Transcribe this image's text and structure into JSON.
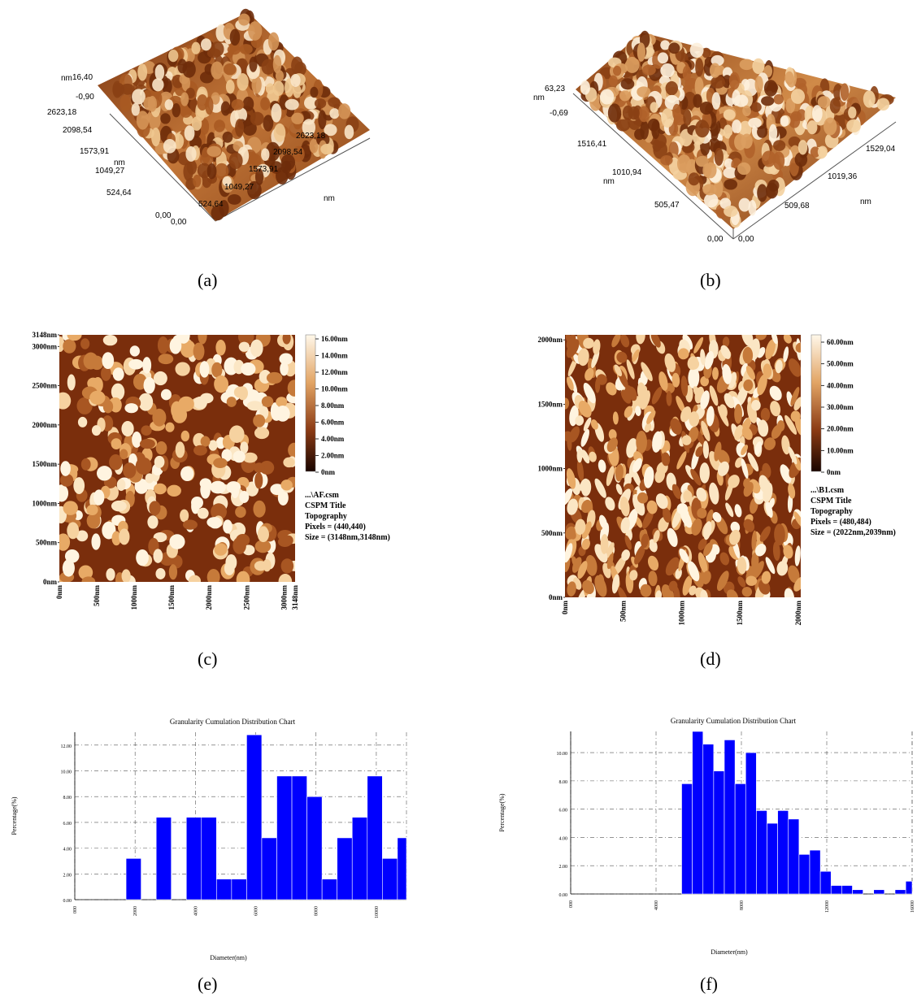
{
  "panels": {
    "a": {
      "caption": "(a)",
      "z_unit": "nm",
      "z_max": "16,40",
      "z_min": "-0,90",
      "left_axis_unit": "nm",
      "left_axis_ticks": [
        "0,00",
        "524,64",
        "1049,27",
        "1573,91",
        "2098,54",
        "2623,18"
      ],
      "right_axis_unit": "nm",
      "right_axis_ticks": [
        "0,00",
        "524,64",
        "1049,27",
        "1573,91",
        "2098,54",
        "2623,18"
      ]
    },
    "b": {
      "caption": "(b)",
      "z_unit": "nm",
      "z_max": "63,23",
      "z_min": "-0,69",
      "left_axis_unit": "nm",
      "left_axis_ticks": [
        "0,00",
        "505,47",
        "1010,94",
        "1516,41"
      ],
      "right_axis_unit": "nm",
      "right_axis_ticks": [
        "0,00",
        "509,68",
        "1019,36",
        "1529,04"
      ]
    },
    "c": {
      "caption": "(c)",
      "y_ticks": [
        "0nm",
        "500nm",
        "1000nm",
        "1500nm",
        "2000nm",
        "2500nm",
        "3000nm",
        "3148nm"
      ],
      "x_ticks": [
        "0nm",
        "500nm",
        "1000nm",
        "1500nm",
        "2000nm",
        "2500nm",
        "3000nm",
        "3148nm"
      ],
      "colorbar_ticks": [
        "16.00nm",
        "14.00nm",
        "12.00nm",
        "10.00nm",
        "8.00nm",
        "6.00nm",
        "4.00nm",
        "2.00nm",
        "0nm"
      ],
      "info": [
        "...\\AF.csm",
        "CSPM Title",
        "Topography",
        "Pixels = (440,440)",
        "Size = (3148nm,3148nm)"
      ]
    },
    "d": {
      "caption": "(d)",
      "y_ticks": [
        "0nm",
        "500nm",
        "1000nm",
        "1500nm",
        "2000nm"
      ],
      "x_ticks": [
        "0nm",
        "500nm",
        "1000nm",
        "1500nm",
        "2000nm"
      ],
      "colorbar_ticks": [
        "60.00nm",
        "50.00nm",
        "40.00nm",
        "30.00nm",
        "20.00nm",
        "10.00nm",
        "0nm"
      ],
      "info": [
        "...\\B1.csm",
        "CSPM Title",
        "Topography",
        "Pixels = (480,484)",
        "Size = (2022nm,2039nm)"
      ]
    },
    "e": {
      "caption": "(e)"
    },
    "f": {
      "caption": "(f)"
    }
  },
  "chart_data": [
    {
      "panel": "e",
      "type": "bar",
      "title": "Granularity Cumulation Distribution   Chart",
      "xlabel": "Diameter(nm)",
      "ylabel": "Percentage(%)",
      "xlim": [
        0,
        110
      ],
      "ylim": [
        0,
        13.0
      ],
      "y_ticks": [
        "0.00",
        "2.00",
        "4.00",
        "6.00",
        "8.00",
        "10.00",
        "12.00"
      ],
      "x_ticks": [
        "000",
        "2000",
        "4000",
        "6000",
        "8000",
        "10000"
      ],
      "x_tick_values": [
        0,
        20,
        40,
        60,
        80,
        100
      ],
      "bins": [
        {
          "x0": 17,
          "x1": 22,
          "value": 3.2
        },
        {
          "x0": 27,
          "x1": 32,
          "value": 6.4
        },
        {
          "x0": 37,
          "x1": 42,
          "value": 6.4
        },
        {
          "x0": 42,
          "x1": 47,
          "value": 6.4
        },
        {
          "x0": 47,
          "x1": 52,
          "value": 1.6
        },
        {
          "x0": 52,
          "x1": 57,
          "value": 1.6
        },
        {
          "x0": 57,
          "x1": 62,
          "value": 12.8
        },
        {
          "x0": 62,
          "x1": 67,
          "value": 4.8
        },
        {
          "x0": 67,
          "x1": 72,
          "value": 9.6
        },
        {
          "x0": 72,
          "x1": 77,
          "value": 9.6
        },
        {
          "x0": 77,
          "x1": 82,
          "value": 8.0
        },
        {
          "x0": 82,
          "x1": 87,
          "value": 1.6
        },
        {
          "x0": 87,
          "x1": 92,
          "value": 4.8
        },
        {
          "x0": 92,
          "x1": 97,
          "value": 6.4
        },
        {
          "x0": 97,
          "x1": 102,
          "value": 9.6
        },
        {
          "x0": 102,
          "x1": 107,
          "value": 3.2
        },
        {
          "x0": 107,
          "x1": 112,
          "value": 4.8
        }
      ],
      "bar_color": "#0000ff",
      "grid": true
    },
    {
      "panel": "f",
      "type": "bar",
      "title": "Granularity Cumulation Distribution   Chart",
      "xlabel": "Diameter(nm)",
      "ylabel": "Percentage(%)",
      "xlim": [
        0,
        160
      ],
      "ylim": [
        0,
        11.5
      ],
      "y_ticks": [
        "0.00",
        "2.00",
        "4.00",
        "6.00",
        "8.00",
        "10.00"
      ],
      "x_ticks": [
        "000",
        "4000",
        "8000",
        "12000",
        "16000"
      ],
      "x_tick_values": [
        0,
        40,
        80,
        120,
        160
      ],
      "bins": [
        {
          "x0": 52,
          "x1": 57,
          "value": 7.8
        },
        {
          "x0": 57,
          "x1": 62,
          "value": 11.5
        },
        {
          "x0": 62,
          "x1": 67,
          "value": 10.6
        },
        {
          "x0": 67,
          "x1": 72,
          "value": 8.7
        },
        {
          "x0": 72,
          "x1": 77,
          "value": 10.9
        },
        {
          "x0": 77,
          "x1": 82,
          "value": 7.8
        },
        {
          "x0": 82,
          "x1": 87,
          "value": 10.0
        },
        {
          "x0": 87,
          "x1": 92,
          "value": 5.9
        },
        {
          "x0": 92,
          "x1": 97,
          "value": 5.0
        },
        {
          "x0": 97,
          "x1": 102,
          "value": 5.9
        },
        {
          "x0": 102,
          "x1": 107,
          "value": 5.3
        },
        {
          "x0": 107,
          "x1": 112,
          "value": 2.8
        },
        {
          "x0": 112,
          "x1": 117,
          "value": 3.1
        },
        {
          "x0": 117,
          "x1": 122,
          "value": 1.6
        },
        {
          "x0": 122,
          "x1": 127,
          "value": 0.6
        },
        {
          "x0": 127,
          "x1": 132,
          "value": 0.6
        },
        {
          "x0": 132,
          "x1": 137,
          "value": 0.3
        },
        {
          "x0": 142,
          "x1": 147,
          "value": 0.3
        },
        {
          "x0": 152,
          "x1": 157,
          "value": 0.3
        },
        {
          "x0": 157,
          "x1": 162,
          "value": 0.9
        }
      ],
      "bar_color": "#0000ff",
      "grid": true
    }
  ],
  "colors": {
    "afm_dark": "#2a0c00",
    "afm_mid": "#a5501c",
    "afm_light": "#fff8ea",
    "bar": "#0000ff"
  }
}
